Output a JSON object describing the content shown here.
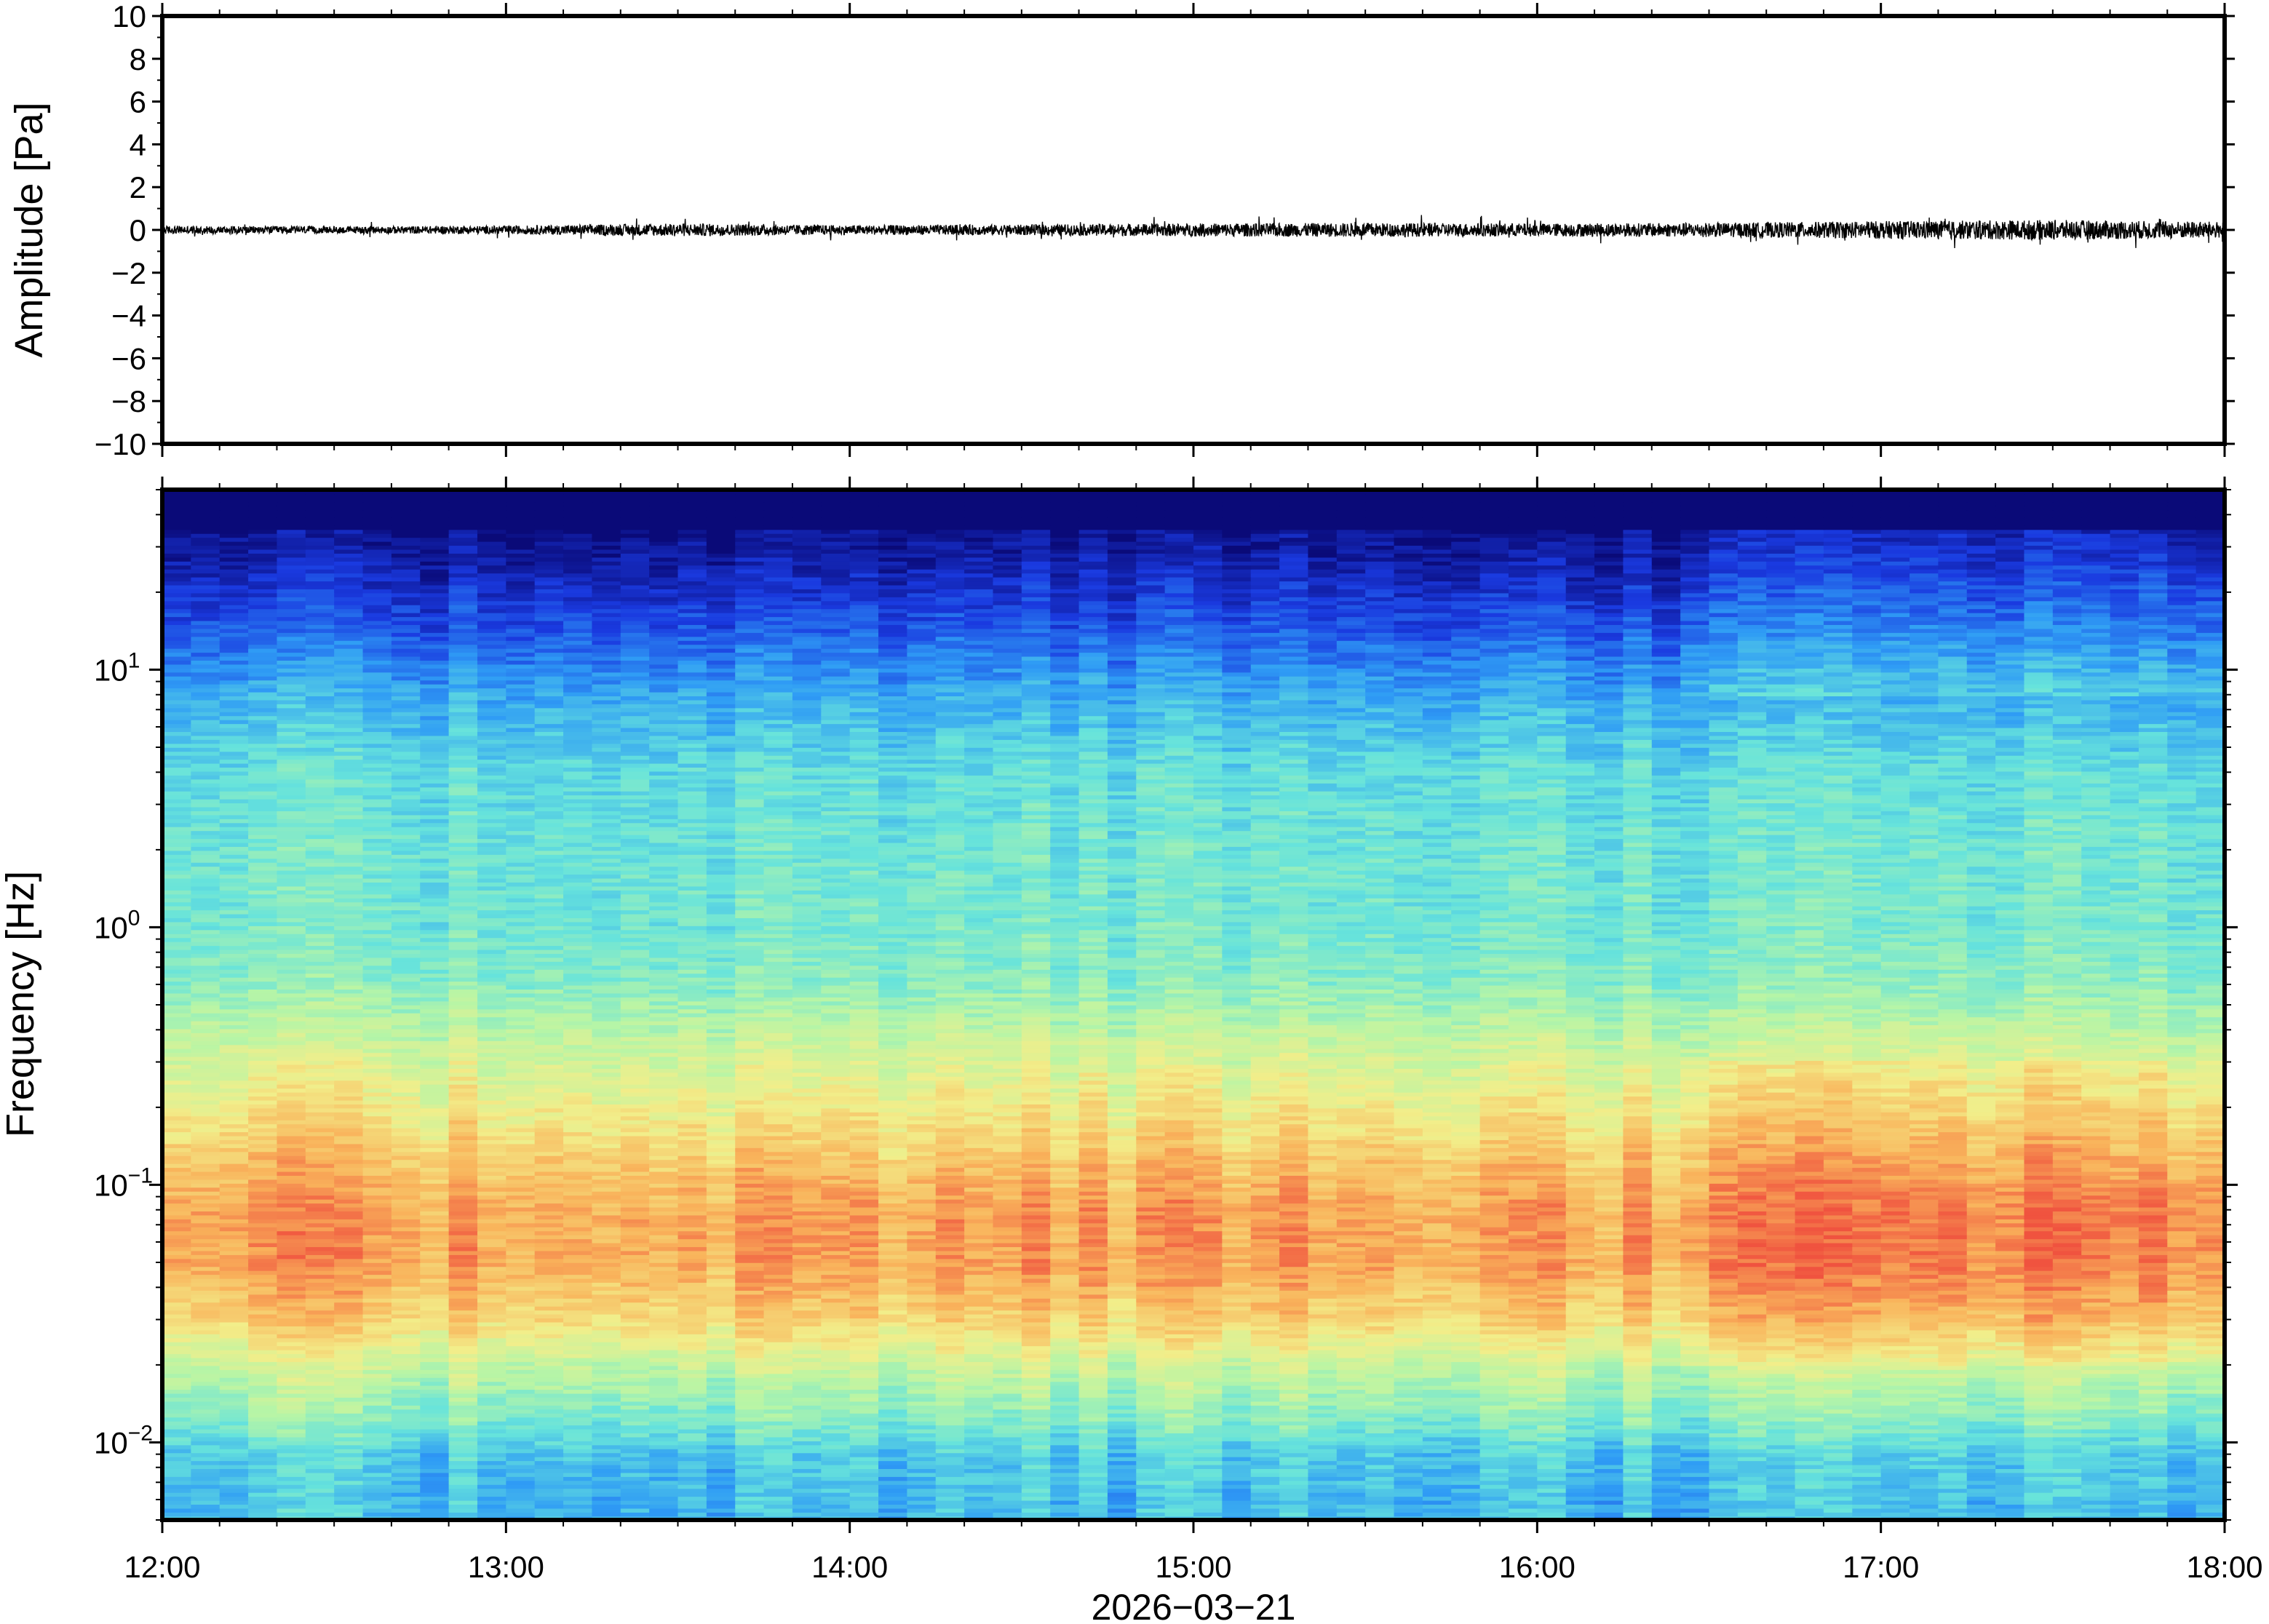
{
  "chart_data": [
    {
      "type": "line",
      "panel": "waveform",
      "ylabel": "Amplitude [Pa]",
      "ylim": [
        -10,
        10
      ],
      "y_ticks": [
        10,
        8,
        6,
        4,
        2,
        0,
        -2,
        -4,
        -6,
        -8,
        -10
      ],
      "y_tick_labels": [
        "10",
        "8",
        "6",
        "4",
        "2",
        "0",
        "−2",
        "−4",
        "−6",
        "−8",
        "−10"
      ],
      "xlim": [
        "2026-03-21T12:00",
        "2026-03-21T18:00"
      ],
      "series": [
        {
          "hours": [
            12.0,
            12.5,
            13.0,
            13.5,
            14.0,
            14.5,
            15.0,
            15.5,
            16.0,
            16.5,
            17.0,
            17.5,
            18.0
          ],
          "max_abs_amplitude_pa": [
            0.35,
            0.3,
            0.35,
            0.55,
            0.4,
            0.45,
            0.55,
            0.6,
            0.55,
            0.6,
            0.75,
            0.85,
            0.7
          ]
        }
      ],
      "line_color": "#000000",
      "grid": false
    },
    {
      "type": "heatmap",
      "panel": "spectrogram",
      "ylabel": "Frequency [Hz]",
      "y_scale": "log",
      "ylim": [
        0.005,
        50
      ],
      "y_ticks": [
        0.01,
        0.1,
        1,
        10
      ],
      "y_tick_labels": [
        {
          "base": "10",
          "exp": "−2"
        },
        {
          "base": "10",
          "exp": "−1"
        },
        {
          "base": "10",
          "exp": "0"
        },
        {
          "base": "10",
          "exp": "1"
        }
      ],
      "colormap": [
        "#0a0a78",
        "#1a3ae0",
        "#2f9cf5",
        "#66e3dc",
        "#b7f5a6",
        "#f2ee8a",
        "#f9b35b",
        "#f0533f"
      ],
      "description_of_levels": {
        "frequency_hz": [
          0.006,
          0.009,
          0.012,
          0.02,
          0.03,
          0.05,
          0.08,
          0.12,
          0.2,
          0.35,
          0.6,
          1,
          2,
          4,
          8,
          15,
          25,
          40
        ],
        "relative_power": [
          0.35,
          0.38,
          0.48,
          0.62,
          0.78,
          0.88,
          0.88,
          0.82,
          0.72,
          0.62,
          0.5,
          0.46,
          0.45,
          0.42,
          0.32,
          0.18,
          0.08,
          0.0
        ]
      },
      "time_ticks": [
        "12:00",
        "13:00",
        "14:00",
        "15:00",
        "16:00",
        "17:00",
        "18:00"
      ],
      "xlabel": "2026−03−21",
      "grid": false
    }
  ]
}
